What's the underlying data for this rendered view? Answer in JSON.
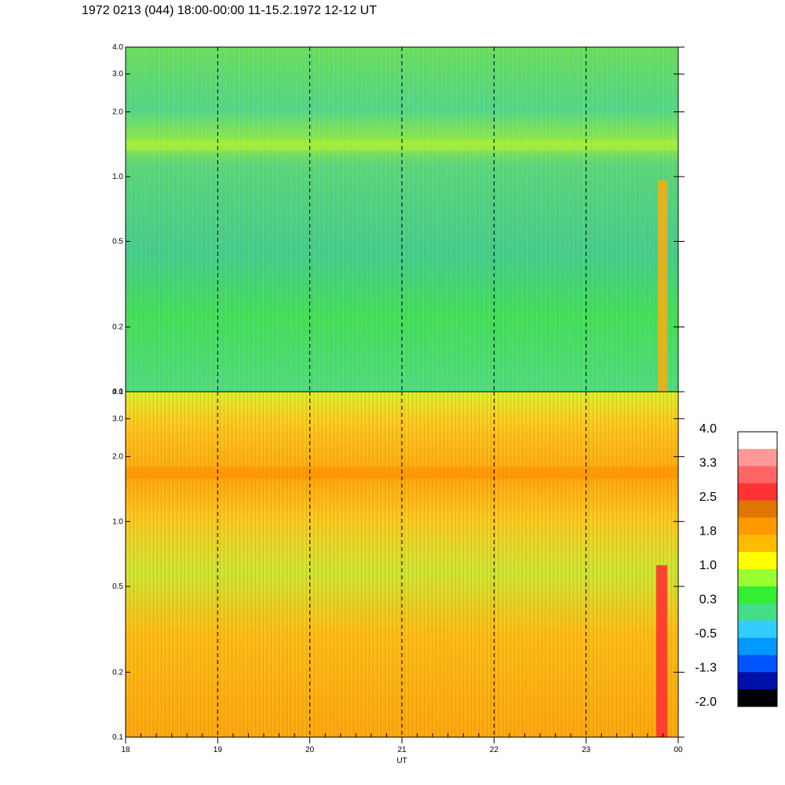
{
  "title": "1972 0213 (044) 18:00-00:00 11-15.2.1972  12-12 UT",
  "chart_data": [
    {
      "type": "heatmap",
      "panel": "upper",
      "x": {
        "ticks": [
          "18",
          "19",
          "20",
          "21",
          "22",
          "23",
          "00"
        ]
      },
      "y": {
        "scale": "log",
        "ylim": [
          0.1,
          4.0
        ],
        "tick_values": [
          0.1,
          0.2,
          0.5,
          1.0,
          2.0,
          3.0,
          4.0
        ],
        "tick_labels": [
          "0.1",
          "0.2",
          "0.5",
          "1.0",
          "2.0",
          "3.0",
          "4.0"
        ]
      },
      "dominant_colors": [
        "#33dd33",
        "#4fd488",
        "#99ff33"
      ],
      "features": [
        "band near 1.3–1.5 (yellow-green)",
        "bright orange/yellow column near 00 UT at low values"
      ]
    },
    {
      "type": "heatmap",
      "panel": "lower",
      "x": {
        "ticks": [
          "18",
          "19",
          "20",
          "21",
          "22",
          "23",
          "00"
        ],
        "label": "UT"
      },
      "y": {
        "scale": "log",
        "ylim": [
          0.1,
          4.0
        ],
        "tick_values": [
          0.1,
          0.2,
          0.5,
          1.0,
          2.0,
          3.0,
          4.0
        ],
        "tick_labels": [
          "0.1",
          "0.2",
          "0.5",
          "1.0",
          "2.0",
          "3.0",
          "4.0"
        ]
      },
      "dominant_colors": [
        "#ffbb00",
        "#ff9900",
        "#ffff00",
        "#99ff33"
      ],
      "features": [
        "orange band near 1.5–1.7",
        "red column near 00 UT at low values"
      ]
    }
  ],
  "colorbar": {
    "labels": [
      "4.0",
      "3.3",
      "2.5",
      "1.8",
      "1.0",
      "0.3",
      "-0.5",
      "-1.3",
      "-2.0"
    ],
    "colors_top_to_bottom": [
      "#ffffff",
      "#ff9999",
      "#ff6666",
      "#ff3333",
      "#dd7700",
      "#ff9900",
      "#ffbb00",
      "#ffff00",
      "#99ff33",
      "#33ee33",
      "#44dd88",
      "#33ccff",
      "#0099ff",
      "#0055ff",
      "#0011aa",
      "#000000"
    ]
  }
}
